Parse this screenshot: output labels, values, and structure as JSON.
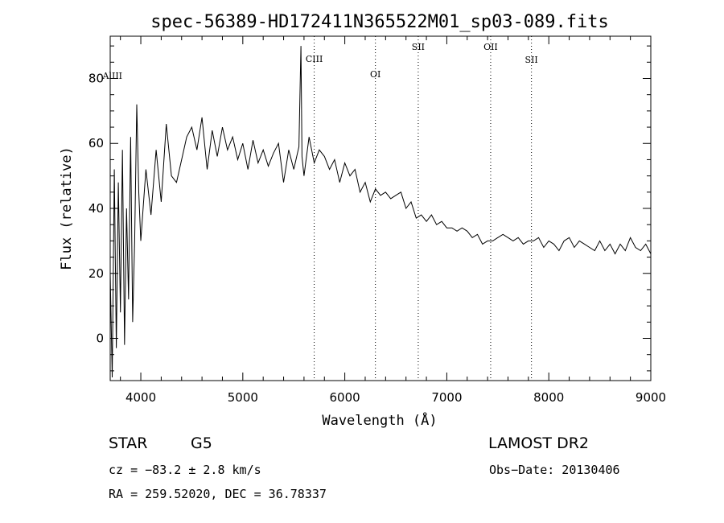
{
  "chart_data": {
    "type": "line",
    "title": "spec-56389-HD172411N365522M01_sp03-089.fits",
    "xlabel": "Wavelength (Å)",
    "ylabel": "Flux (relative)",
    "xlim": [
      3700,
      9000
    ],
    "ylim": [
      -13,
      93
    ],
    "xticks": [
      4000,
      5000,
      6000,
      7000,
      8000,
      9000
    ],
    "yticks": [
      0,
      20,
      40,
      60,
      80
    ],
    "grid": false,
    "line_color": "#000000",
    "series": [
      {
        "x": [
          3700,
          3720,
          3740,
          3760,
          3780,
          3800,
          3820,
          3840,
          3860,
          3880,
          3900,
          3920,
          3940,
          3960,
          3980,
          4000,
          4050,
          4100,
          4150,
          4200,
          4250,
          4300,
          4350,
          4400,
          4450,
          4500,
          4550,
          4600,
          4650,
          4700,
          4750,
          4800,
          4850,
          4900,
          4950,
          5000,
          5050,
          5100,
          5150,
          5200,
          5250,
          5300,
          5350,
          5400,
          5450,
          5500,
          5550,
          5570,
          5580,
          5600,
          5650,
          5700,
          5750,
          5800,
          5850,
          5900,
          5950,
          6000,
          6050,
          6100,
          6150,
          6200,
          6250,
          6300,
          6350,
          6400,
          6450,
          6500,
          6550,
          6600,
          6650,
          6700,
          6750,
          6800,
          6850,
          6900,
          6950,
          7000,
          7050,
          7100,
          7150,
          7200,
          7250,
          7300,
          7350,
          7400,
          7450,
          7500,
          7550,
          7600,
          7650,
          7700,
          7750,
          7800,
          7850,
          7900,
          7950,
          8000,
          8050,
          8100,
          8150,
          8200,
          8250,
          8300,
          8350,
          8400,
          8450,
          8500,
          8550,
          8600,
          8650,
          8700,
          8750,
          8800,
          8850,
          8900,
          8950,
          9000
        ],
        "y": [
          20,
          -12,
          52,
          -3,
          48,
          8,
          58,
          -2,
          40,
          12,
          62,
          5,
          30,
          72,
          45,
          30,
          52,
          38,
          58,
          42,
          66,
          50,
          48,
          55,
          62,
          65,
          58,
          68,
          52,
          64,
          56,
          65,
          58,
          62,
          55,
          60,
          52,
          61,
          54,
          58,
          53,
          57,
          60,
          48,
          58,
          52,
          59,
          90,
          56,
          50,
          62,
          54,
          58,
          56,
          52,
          55,
          48,
          54,
          50,
          52,
          45,
          48,
          42,
          46,
          44,
          45,
          43,
          44,
          45,
          40,
          42,
          37,
          38,
          36,
          38,
          35,
          36,
          34,
          34,
          33,
          34,
          33,
          31,
          32,
          29,
          30,
          30,
          31,
          32,
          31,
          30,
          31,
          29,
          30,
          30,
          31,
          28,
          30,
          29,
          27,
          30,
          31,
          28,
          30,
          29,
          28,
          27,
          30,
          27,
          29,
          26,
          29,
          27,
          31,
          28,
          27,
          29,
          26
        ]
      }
    ],
    "spectral_lines": [
      {
        "label": "AlIII",
        "wavelength": 3722
      },
      {
        "label": "CIII",
        "wavelength": 5700
      },
      {
        "label": "OI",
        "wavelength": 6300
      },
      {
        "label": "SII",
        "wavelength": 6720
      },
      {
        "label": "OII",
        "wavelength": 7430
      },
      {
        "label": "SII",
        "wavelength": 7830
      }
    ]
  },
  "info": {
    "object_class": "STAR",
    "subclass": "G5",
    "redshift_text": "cz = −83.2 ± 2.8 km/s",
    "coords_text": "RA = 259.52020, DEC =  36.78337",
    "survey": "LAMOST DR2",
    "obs_date": "Obs−Date: 20130406"
  }
}
